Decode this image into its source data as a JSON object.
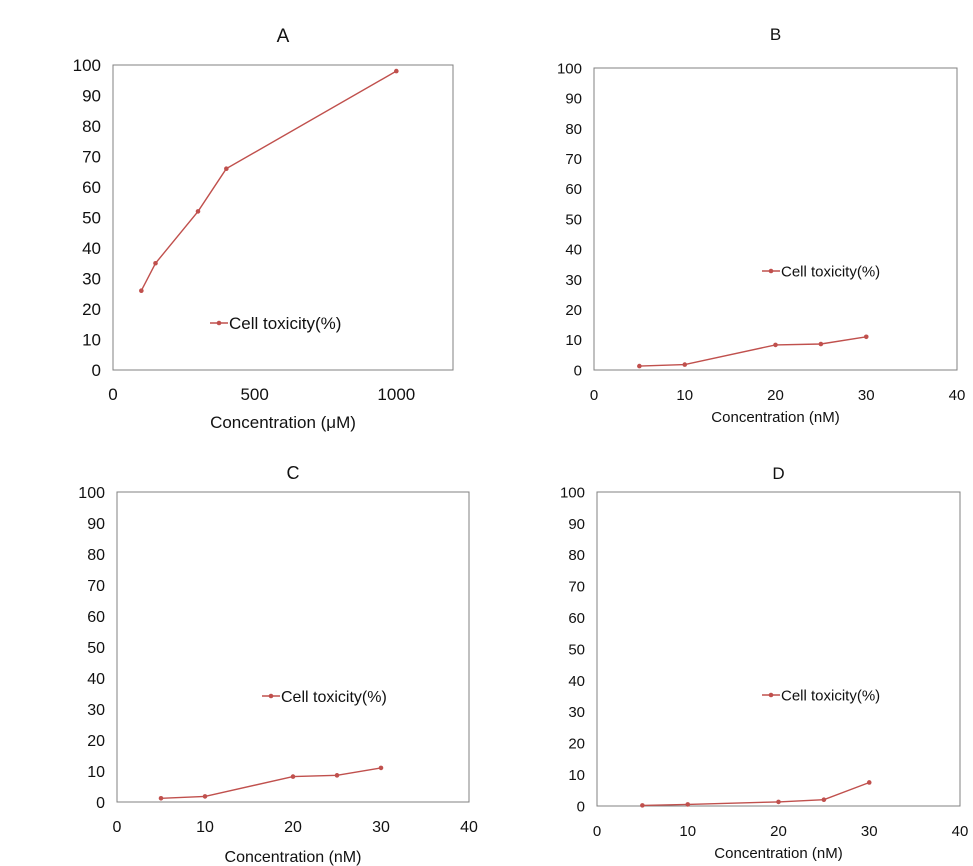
{
  "colors": {
    "series": "#c0504d",
    "axis": "#808080",
    "text": "#111111"
  },
  "chart_data": [
    {
      "type": "line",
      "title": "A",
      "xlabel": "Concentration (μM)",
      "ylabel": "",
      "xlim": [
        0,
        1200
      ],
      "ylim": [
        0,
        100
      ],
      "xticks": [
        "0",
        "500",
        "1000"
      ],
      "yticks": [
        "0",
        "10",
        "20",
        "30",
        "40",
        "50",
        "60",
        "70",
        "80",
        "90",
        "100"
      ],
      "legend": "inside-bottom-center",
      "series": [
        {
          "name": "Cell toxicity(%)",
          "x": [
            100,
            150,
            300,
            400,
            1000
          ],
          "y": [
            26,
            35,
            52,
            66,
            98
          ]
        }
      ]
    },
    {
      "type": "line",
      "title": "B",
      "xlabel": "Concentration (nM)",
      "ylabel": "",
      "xlim": [
        0,
        40
      ],
      "ylim": [
        0,
        100
      ],
      "xticks": [
        "0",
        "10",
        "20",
        "30",
        "40"
      ],
      "yticks": [
        "0",
        "10",
        "20",
        "30",
        "40",
        "50",
        "60",
        "70",
        "80",
        "90",
        "100"
      ],
      "legend": "inside-right-center",
      "series": [
        {
          "name": "Cell toxicity(%)",
          "x": [
            5,
            10,
            20,
            25,
            30
          ],
          "y": [
            1.3,
            1.8,
            8.3,
            8.6,
            11
          ]
        }
      ]
    },
    {
      "type": "line",
      "title": "C",
      "xlabel": "Concentration (nM)",
      "ylabel": "",
      "xlim": [
        0,
        40
      ],
      "ylim": [
        0,
        100
      ],
      "xticks": [
        "0",
        "10",
        "20",
        "30",
        "40"
      ],
      "yticks": [
        "0",
        "10",
        "20",
        "30",
        "40",
        "50",
        "60",
        "70",
        "80",
        "90",
        "100"
      ],
      "legend": "inside-right-center",
      "series": [
        {
          "name": "Cell toxicity(%)",
          "x": [
            5,
            10,
            20,
            25,
            30
          ],
          "y": [
            1.2,
            1.8,
            8.2,
            8.6,
            11
          ]
        }
      ]
    },
    {
      "type": "line",
      "title": "D",
      "xlabel": "Concentration (nM)",
      "ylabel": "",
      "xlim": [
        0,
        40
      ],
      "ylim": [
        0,
        100
      ],
      "xticks": [
        "0",
        "10",
        "20",
        "30",
        "40"
      ],
      "yticks": [
        "0",
        "10",
        "20",
        "30",
        "40",
        "50",
        "60",
        "70",
        "80",
        "90",
        "100"
      ],
      "legend": "inside-right-center",
      "series": [
        {
          "name": "Cell toxicity(%)",
          "x": [
            5,
            10,
            20,
            25,
            30
          ],
          "y": [
            0.2,
            0.5,
            1.3,
            2,
            7.5
          ]
        }
      ]
    }
  ]
}
